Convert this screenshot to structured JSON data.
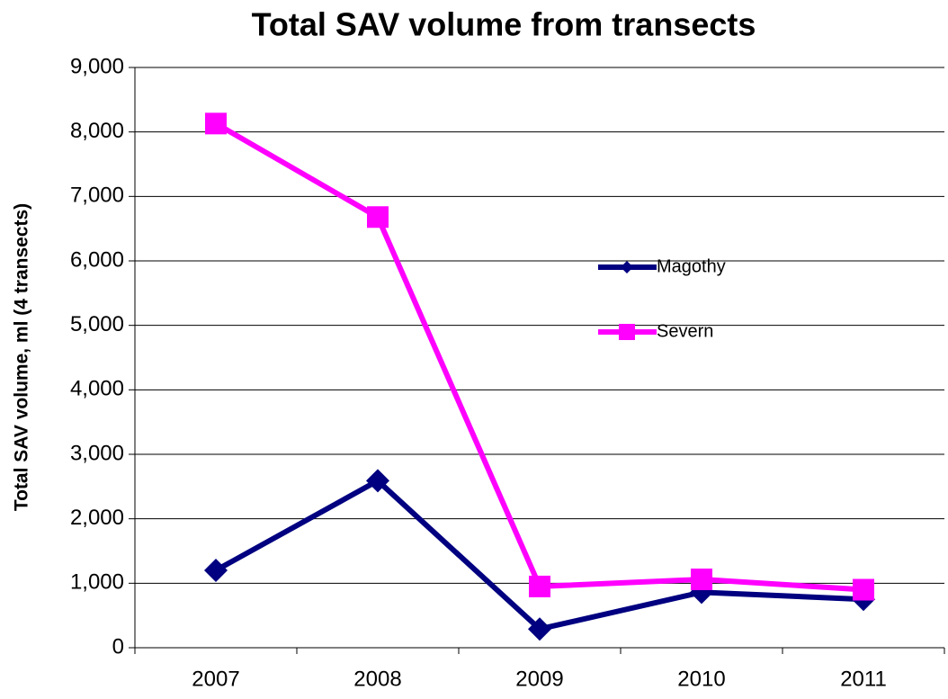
{
  "chart_data": {
    "type": "line",
    "title": "Total SAV volume from transects",
    "y_label": "Total SAV volume, ml (4 transects)",
    "categories": [
      "2007",
      "2008",
      "2009",
      "2010",
      "2011"
    ],
    "series": [
      {
        "name": "Magothy",
        "color": "#000080",
        "marker": "diamond",
        "values": [
          1200,
          2590,
          290,
          860,
          750
        ]
      },
      {
        "name": "Severn",
        "color": "#ff00ff",
        "marker": "square",
        "values": [
          8130,
          6680,
          950,
          1060,
          900
        ]
      }
    ],
    "ylim": [
      0,
      9000
    ],
    "yticks": [
      0,
      {
        "value": 1000,
        "label": "1,000"
      },
      {
        "value": 2000,
        "label": "2,000"
      },
      {
        "value": 3000,
        "label": "3,000"
      },
      {
        "value": 4000,
        "label": "4,000"
      },
      {
        "value": 5000,
        "label": "5,000"
      },
      {
        "value": 6000,
        "label": "6,000"
      },
      {
        "value": 7000,
        "label": "7,000"
      },
      {
        "value": 8000,
        "label": "8,000"
      },
      {
        "value": 9000,
        "label": "9,000"
      }
    ],
    "grid": true,
    "legend": "right"
  }
}
